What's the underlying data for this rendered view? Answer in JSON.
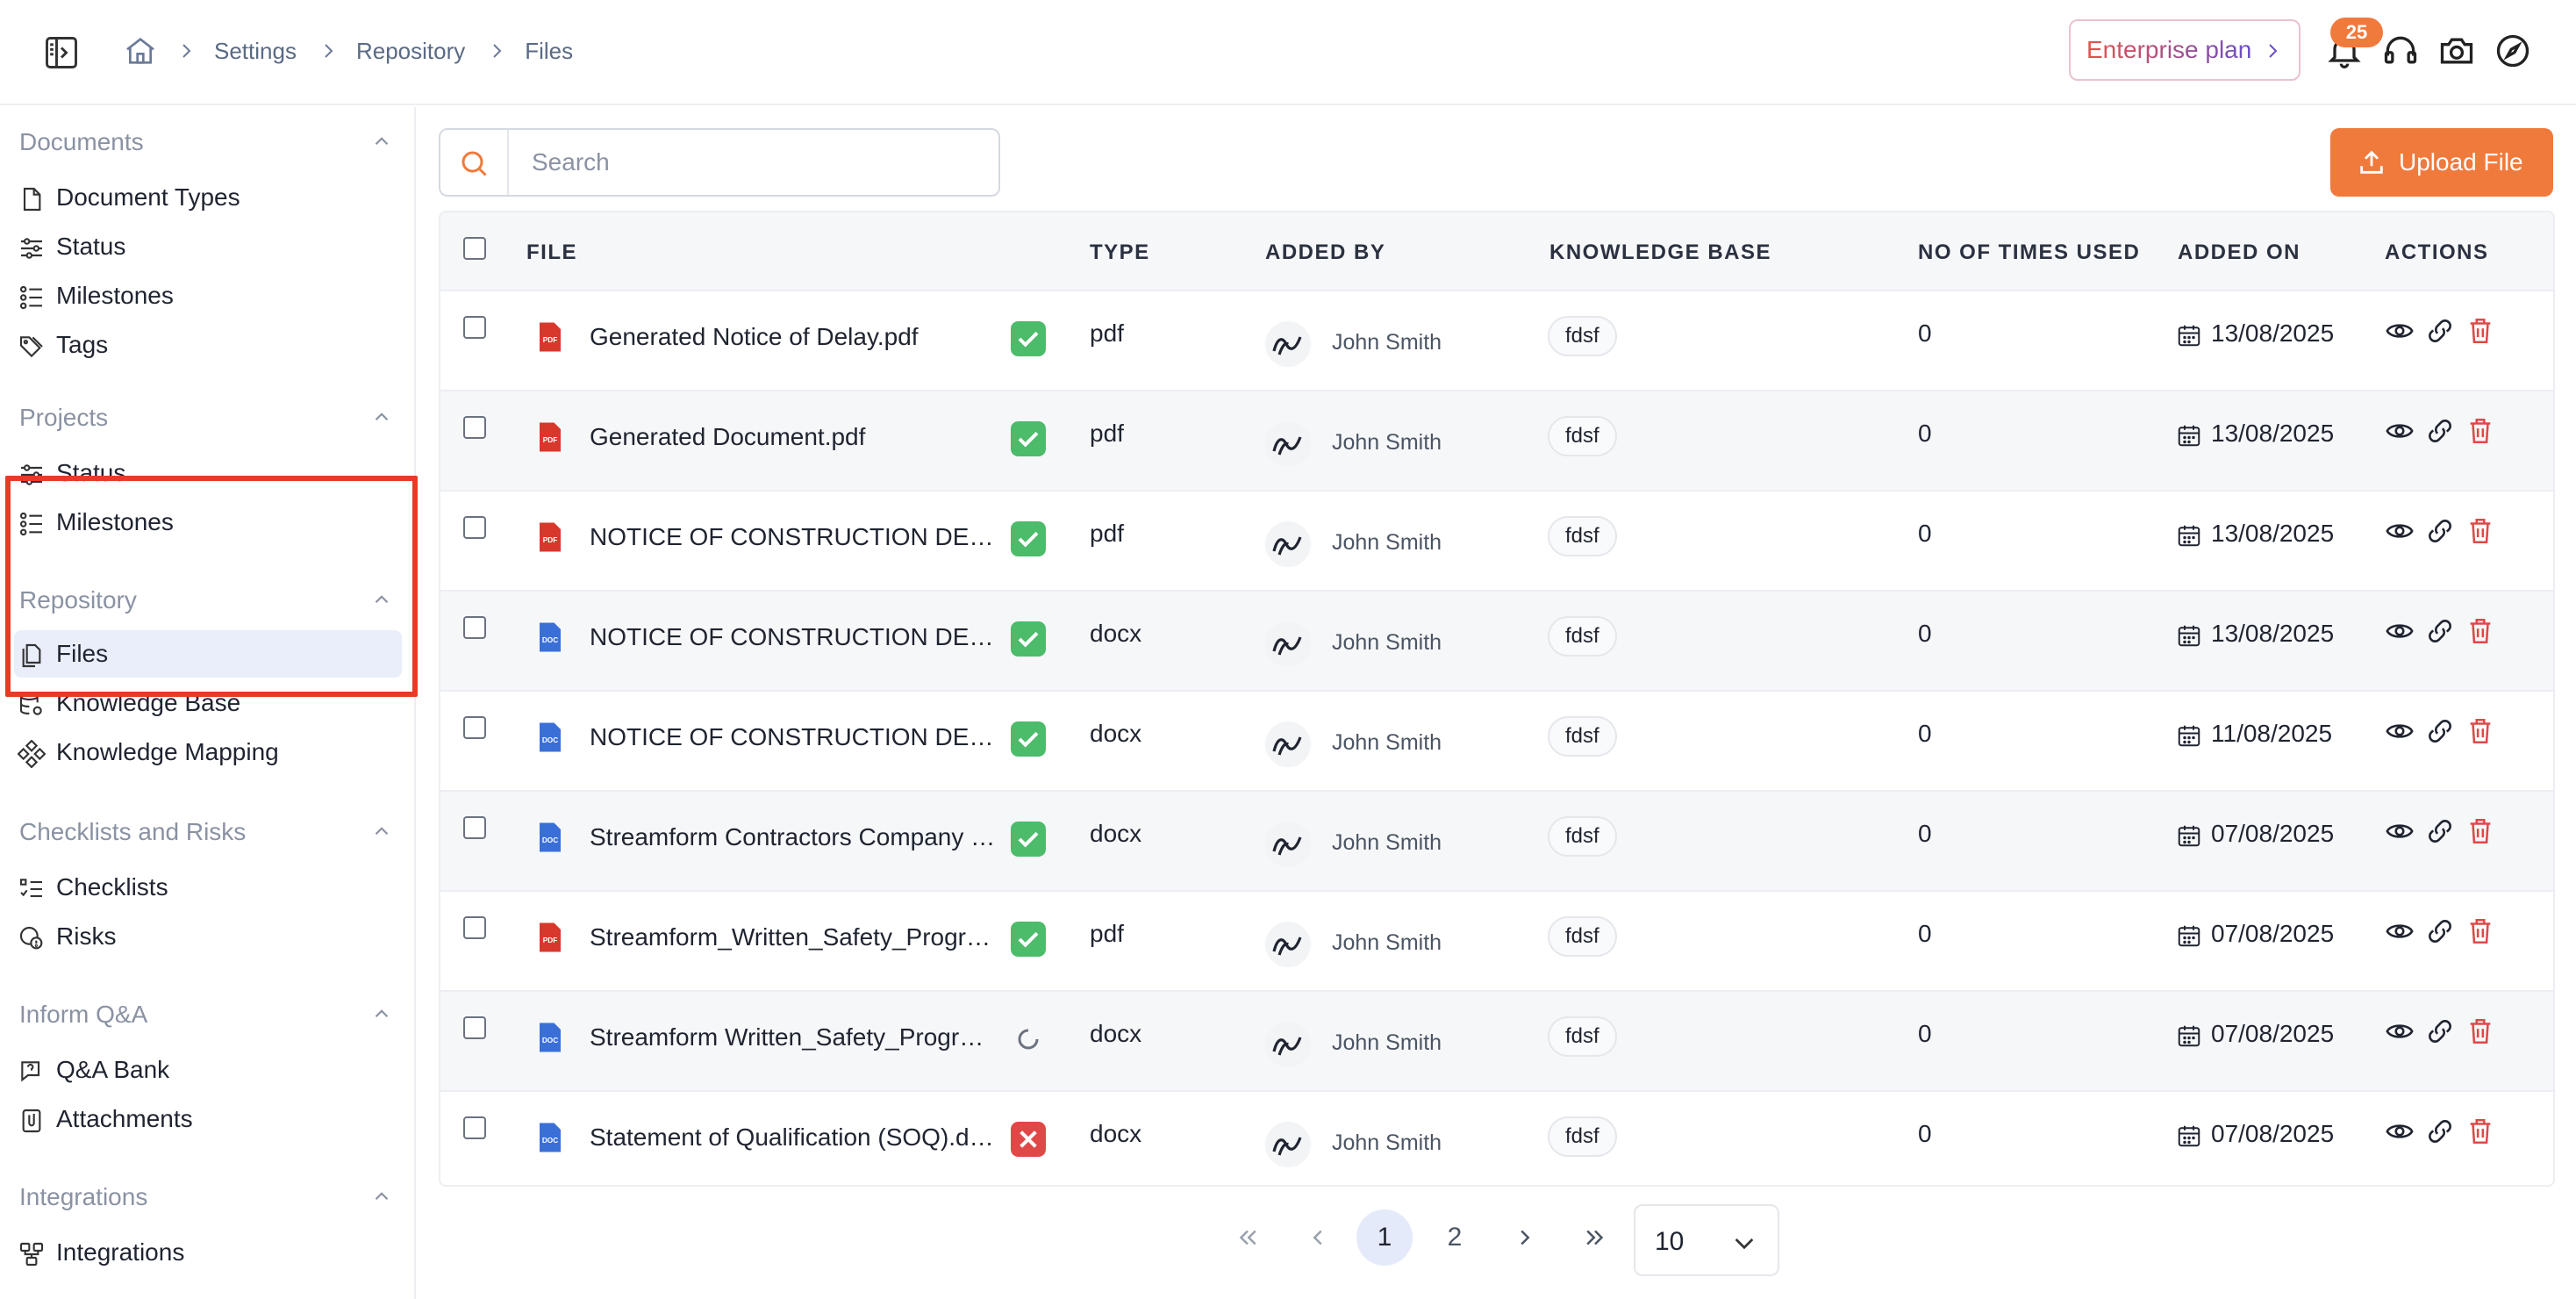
{
  "header": {
    "breadcrumb": [
      "Settings",
      "Repository",
      "Files"
    ],
    "enterprise_label": "Enterprise plan",
    "notification_count": "25"
  },
  "sidebar": {
    "sections": [
      {
        "title": "Documents",
        "items": [
          "Document Types",
          "Status",
          "Milestones",
          "Tags"
        ]
      },
      {
        "title": "Projects",
        "items": [
          "Status",
          "Milestones"
        ]
      },
      {
        "title": "Repository",
        "items": [
          "Files",
          "Knowledge Base",
          "Knowledge Mapping"
        ]
      },
      {
        "title": "Checklists and Risks",
        "items": [
          "Checklists",
          "Risks"
        ]
      },
      {
        "title": "Inform Q&A",
        "items": [
          "Q&A Bank",
          "Attachments"
        ]
      },
      {
        "title": "Integrations",
        "items": [
          "Integrations"
        ]
      }
    ],
    "active_item": "Files"
  },
  "search": {
    "placeholder": "Search"
  },
  "upload_label": "Upload File",
  "table": {
    "columns": [
      "FILE",
      "TYPE",
      "ADDED BY",
      "KNOWLEDGE BASE",
      "NO OF TIMES USED",
      "ADDED ON",
      "ACTIONS"
    ],
    "rows": [
      {
        "file": "Generated Notice of Delay.pdf",
        "icon": "pdf",
        "status": "success",
        "type": "pdf",
        "added_by": "John Smith",
        "kb": "fdsf",
        "used": "0",
        "date": "13/08/2025"
      },
      {
        "file": "Generated Document.pdf",
        "icon": "pdf",
        "status": "success",
        "type": "pdf",
        "added_by": "John Smith",
        "kb": "fdsf",
        "used": "0",
        "date": "13/08/2025"
      },
      {
        "file": "NOTICE OF CONSTRUCTION DE…",
        "icon": "pdf",
        "status": "success",
        "type": "pdf",
        "added_by": "John Smith",
        "kb": "fdsf",
        "used": "0",
        "date": "13/08/2025"
      },
      {
        "file": "NOTICE OF CONSTRUCTION DE…",
        "icon": "doc",
        "status": "success",
        "type": "docx",
        "added_by": "John Smith",
        "kb": "fdsf",
        "used": "0",
        "date": "13/08/2025"
      },
      {
        "file": "NOTICE OF CONSTRUCTION DE…",
        "icon": "doc",
        "status": "success",
        "type": "docx",
        "added_by": "John Smith",
        "kb": "fdsf",
        "used": "0",
        "date": "11/08/2025"
      },
      {
        "file": "Streamform Contractors Company …",
        "icon": "doc",
        "status": "success",
        "type": "docx",
        "added_by": "John Smith",
        "kb": "fdsf",
        "used": "0",
        "date": "07/08/2025"
      },
      {
        "file": "Streamform_Written_Safety_Progr…",
        "icon": "pdf",
        "status": "success",
        "type": "pdf",
        "added_by": "John Smith",
        "kb": "fdsf",
        "used": "0",
        "date": "07/08/2025"
      },
      {
        "file": "Streamform Written_Safety_Progr…",
        "icon": "doc",
        "status": "processing",
        "type": "docx",
        "added_by": "John Smith",
        "kb": "fdsf",
        "used": "0",
        "date": "07/08/2025"
      },
      {
        "file": "Statement of Qualification (SOQ).d…",
        "icon": "doc",
        "status": "failed",
        "type": "docx",
        "added_by": "John Smith",
        "kb": "fdsf",
        "used": "0",
        "date": "07/08/2025"
      }
    ]
  },
  "pagination": {
    "pages": [
      "1",
      "2"
    ],
    "current": "1",
    "page_size": "10"
  },
  "colors": {
    "accent": "#f07a3c",
    "success": "#4cbb6a",
    "danger": "#e04848",
    "pdf": "#d8382c",
    "doc": "#3a6fd8",
    "highlight": "#e83a26"
  }
}
